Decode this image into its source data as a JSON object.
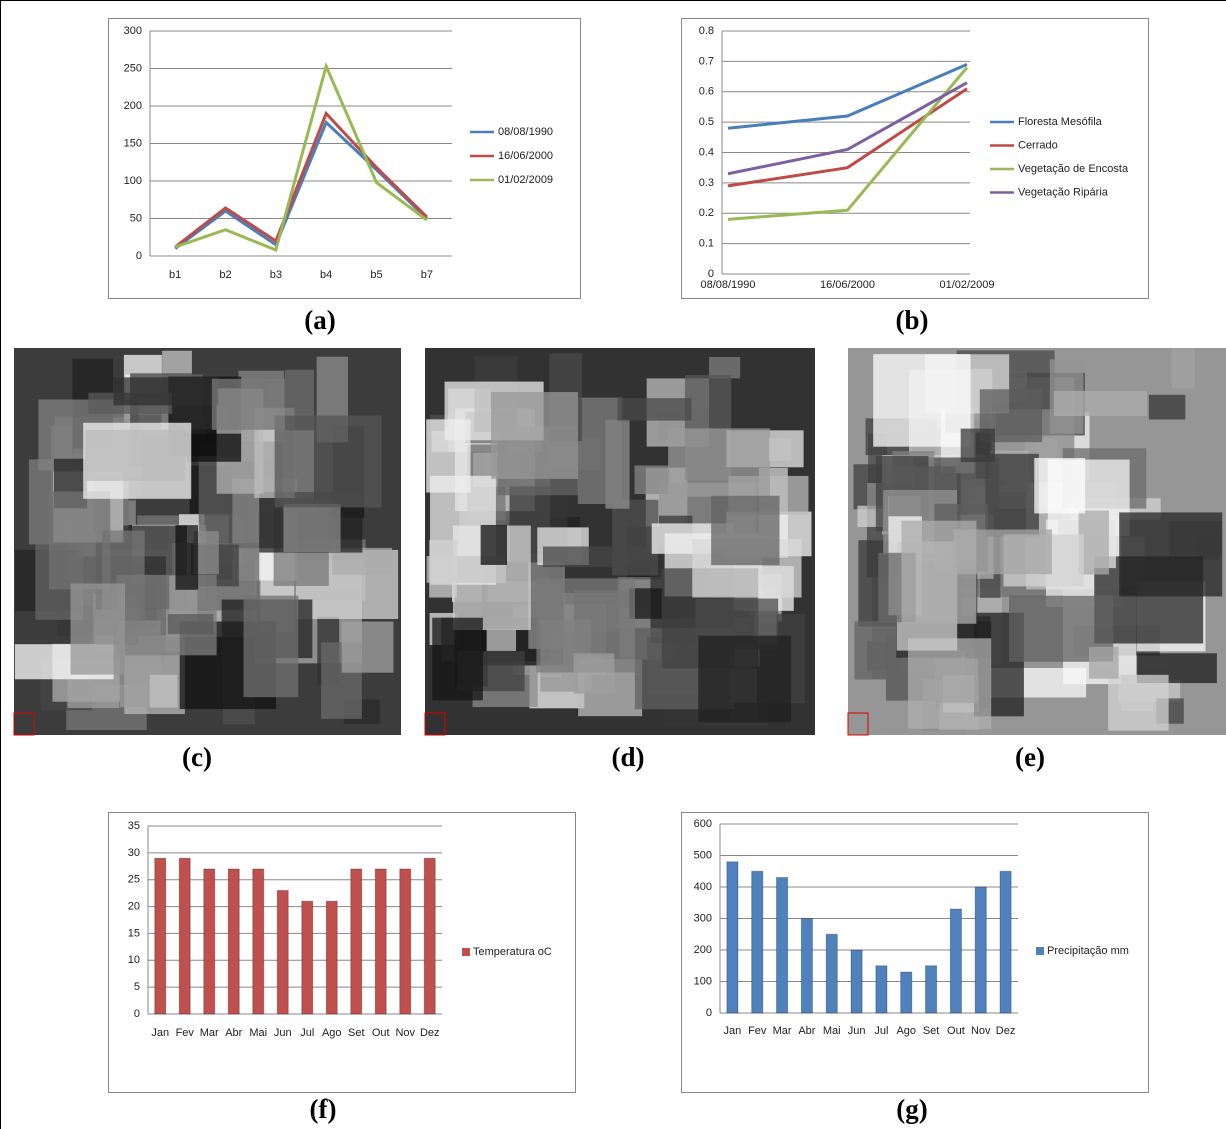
{
  "chart_data": [
    {
      "type": "line",
      "categories": [
        "b1",
        "b2",
        "b3",
        "b4",
        "b5",
        "b7"
      ],
      "series": [
        {
          "name": "08/08/1990",
          "color": "#4a7ebb",
          "values": [
            10,
            60,
            15,
            178,
            115,
            50
          ]
        },
        {
          "name": "16/06/2000",
          "color": "#be4b48",
          "values": [
            12,
            64,
            20,
            190,
            118,
            52
          ]
        },
        {
          "name": "01/02/2009",
          "color": "#98b954",
          "values": [
            12,
            35,
            8,
            253,
            98,
            48
          ]
        }
      ],
      "ylim": [
        0,
        300
      ],
      "yticks": [
        0,
        50,
        100,
        150,
        200,
        250,
        300
      ],
      "grid": true,
      "legend": "right"
    },
    {
      "type": "line",
      "categories": [
        "08/08/1990",
        "16/06/2000",
        "01/02/2009"
      ],
      "series": [
        {
          "name": "Floresta Mesófila",
          "color": "#4a7ebb",
          "values": [
            0.48,
            0.52,
            0.69
          ]
        },
        {
          "name": "Cerrado",
          "color": "#be4b48",
          "values": [
            0.29,
            0.35,
            0.61
          ]
        },
        {
          "name": "Vegetação de Encosta",
          "color": "#98b954",
          "values": [
            0.18,
            0.21,
            0.68
          ]
        },
        {
          "name": "Vegetação Ripária",
          "color": "#7d60a0",
          "values": [
            0.33,
            0.41,
            0.63
          ]
        }
      ],
      "ylim": [
        0,
        0.8
      ],
      "yticks": [
        0,
        0.1,
        0.2,
        0.3,
        0.4,
        0.5,
        0.6,
        0.7,
        0.8
      ],
      "grid": true,
      "legend": "right"
    },
    {
      "type": "bar",
      "categories": [
        "Jan",
        "Fev",
        "Mar",
        "Abr",
        "Mai",
        "Jun",
        "Jul",
        "Ago",
        "Set",
        "Out",
        "Nov",
        "Dez"
      ],
      "series": [
        {
          "name": "Temperatura oC",
          "color": "#c0504d",
          "values": [
            29,
            29,
            27,
            27,
            27,
            23,
            21,
            21,
            27,
            27,
            27,
            29
          ]
        }
      ],
      "ylim": [
        0,
        35
      ],
      "yticks": [
        0,
        5,
        10,
        15,
        20,
        25,
        30,
        35
      ],
      "grid": true,
      "legend": "right"
    },
    {
      "type": "bar",
      "categories": [
        "Jan",
        "Fev",
        "Mar",
        "Abr",
        "Mai",
        "Jun",
        "Jul",
        "Ago",
        "Set",
        "Out",
        "Nov",
        "Dez"
      ],
      "series": [
        {
          "name": "Precipitação mm",
          "color": "#4f81bd",
          "values": [
            480,
            450,
            430,
            300,
            250,
            200,
            150,
            130,
            150,
            330,
            400,
            450
          ]
        }
      ],
      "ylim": [
        0,
        600
      ],
      "yticks": [
        0,
        100,
        200,
        300,
        400,
        500,
        600
      ],
      "grid": true,
      "legend": "right"
    }
  ],
  "panel_labels": [
    "(a)",
    "(b)",
    "(c)",
    "(d)",
    "(e)",
    "(f)",
    "(g)"
  ]
}
